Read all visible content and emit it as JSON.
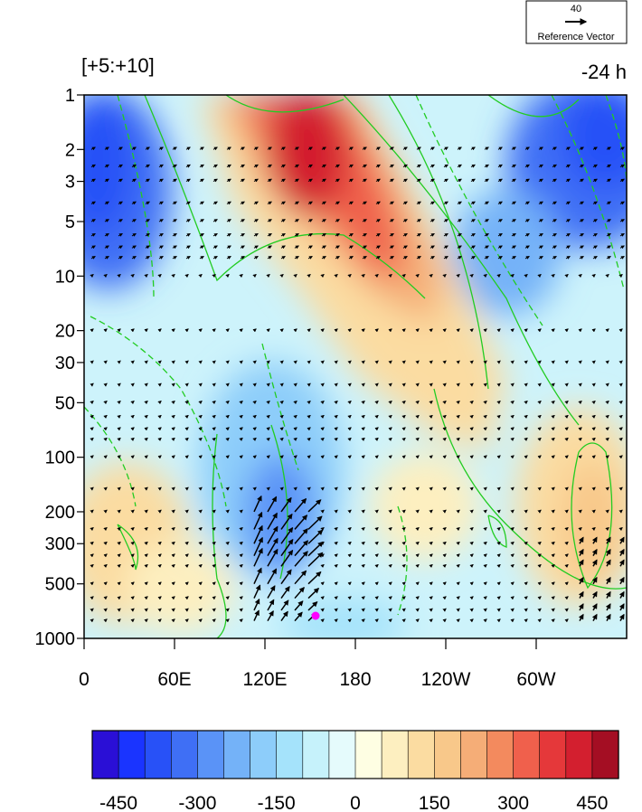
{
  "chart_data": {
    "type": "heatmap",
    "panel_label": "[+5:+10]",
    "time_label": "-24 h",
    "x_ticks": [
      "0",
      "60E",
      "120E",
      "180",
      "120W",
      "60W"
    ],
    "y_ticks": [
      "1",
      "2",
      "3",
      "5",
      "10",
      "20",
      "30",
      "50",
      "100",
      "200",
      "300",
      "500",
      "1000"
    ],
    "y_scale": "log",
    "y_range": [
      1000,
      1
    ],
    "x_range_deg": [
      0,
      360
    ],
    "reference_vector": {
      "magnitude": "40",
      "label": "Reference Vector"
    },
    "colorbar": {
      "tick_labels": [
        "-450",
        "-300",
        "-150",
        "0",
        "150",
        "300",
        "450"
      ],
      "colors": [
        "#2a0fd6",
        "#1a34ff",
        "#2851f7",
        "#3f6ff5",
        "#5a93f7",
        "#74b2f8",
        "#8dcdfa",
        "#a5e3fb",
        "#c6f2fb",
        "#e5fbfc",
        "#fefee3",
        "#fdefc0",
        "#fbdca1",
        "#f8c88a",
        "#f5ad77",
        "#f38a5e",
        "#f0604c",
        "#e5383a",
        "#d31f2f",
        "#a40e23"
      ]
    },
    "marker": {
      "lon": 155,
      "level_hPa": 800,
      "color": "#ff00ff"
    },
    "features": [
      {
        "name": "upper warm anomaly",
        "lon": 155,
        "level_hPa": 3,
        "value": 560
      },
      {
        "name": "tropospheric cold anomaly",
        "lon": 130,
        "level_hPa": 250,
        "value": -300
      },
      {
        "name": "western upper cold anomaly",
        "lon": 15,
        "level_hPa": 5,
        "value": -430
      },
      {
        "name": "eastern upper cold anomaly",
        "lon": 330,
        "level_hPa": 3,
        "value": -430
      },
      {
        "name": "lower warm anomaly",
        "lon": 335,
        "level_hPa": 250,
        "value": 180
      }
    ]
  }
}
